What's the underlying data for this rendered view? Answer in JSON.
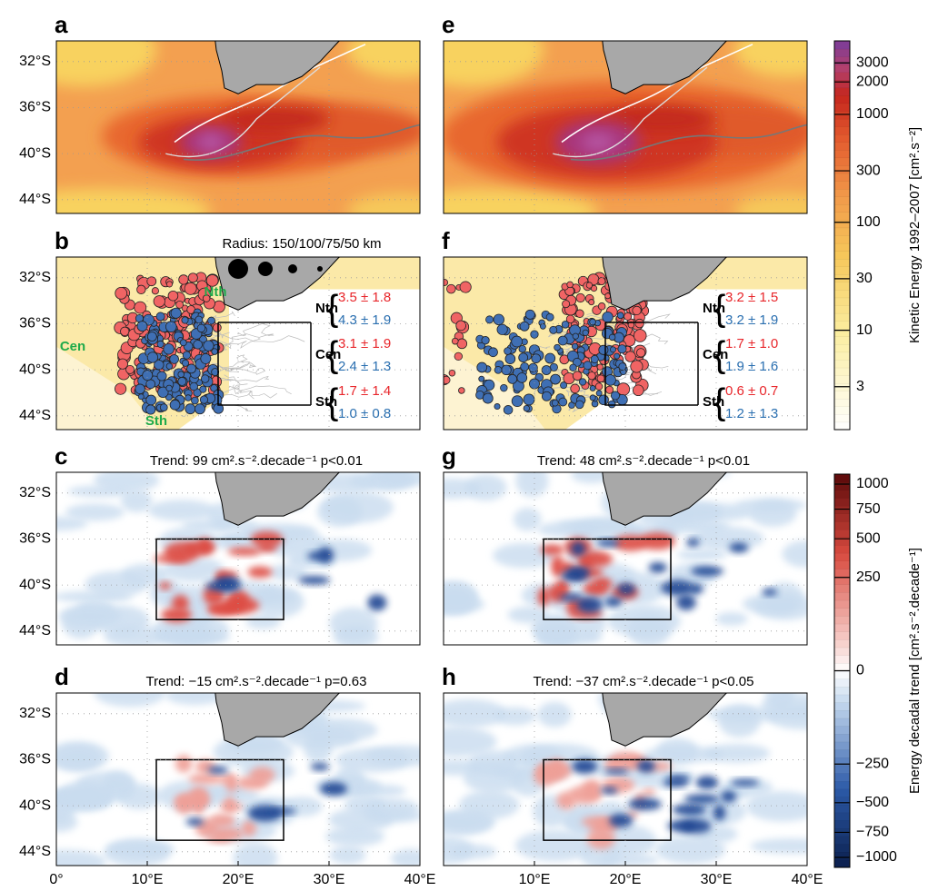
{
  "panels": [
    {
      "label": "a"
    },
    {
      "label": "e"
    },
    {
      "label": "b",
      "annotation": "Radius:  150/100/75/50 km",
      "regions": [
        "Nth",
        "Cen",
        "Sth"
      ],
      "stats": [
        {
          "region": "Nth",
          "red": "3.5 ± 1.8",
          "blue": "4.3 ± 1.9"
        },
        {
          "region": "Cen",
          "red": "3.1 ± 1.9",
          "blue": "2.4 ± 1.3"
        },
        {
          "region": "Sth",
          "red": "1.7 ± 1.4",
          "blue": "1.0 ± 0.8"
        }
      ]
    },
    {
      "label": "f",
      "stats": [
        {
          "region": "Nth",
          "red": "3.2 ± 1.5",
          "blue": "3.2 ± 1.9"
        },
        {
          "region": "Cen",
          "red": "1.7 ± 1.0",
          "blue": "1.9 ± 1.6"
        },
        {
          "region": "Sth",
          "red": "0.6 ± 0.7",
          "blue": "1.2 ± 1.3"
        }
      ]
    },
    {
      "label": "c",
      "title": "Trend: 99 cm².s⁻².decade⁻¹ p<0.01"
    },
    {
      "label": "g",
      "title": "Trend: 48 cm².s⁻².decade⁻¹ p<0.01"
    },
    {
      "label": "d",
      "title": "Trend: −15 cm².s⁻².decade⁻¹ p=0.63"
    },
    {
      "label": "h",
      "title": "Trend: −37 cm².s⁻².decade⁻¹ p<0.05"
    }
  ],
  "map_axes": {
    "xlim": [
      0,
      40
    ],
    "ylim": [
      -45.2,
      -30.2
    ],
    "xticks": [
      {
        "value": 0,
        "label": "0°"
      },
      {
        "value": 10,
        "label": "10°E"
      },
      {
        "value": 20,
        "label": "20°E"
      },
      {
        "value": 30,
        "label": "30°E"
      },
      {
        "value": 40,
        "label": "40°E"
      }
    ],
    "yticks": [
      {
        "value": -32,
        "label": "32°S"
      },
      {
        "value": -36,
        "label": "36°S"
      },
      {
        "value": -40,
        "label": "40°S"
      },
      {
        "value": -44,
        "label": "44°S"
      }
    ]
  },
  "colorbars": [
    {
      "label": "Kinetic Energy 1992–2007 [cm².s⁻²]",
      "scale": "log",
      "lim": [
        1.2,
        4800
      ],
      "ticks": [
        3,
        10,
        30,
        100,
        300,
        1000,
        2000,
        3000
      ]
    },
    {
      "label": "Energy decadal trend [cm².s⁻².decade⁻¹]",
      "scale": "sqrt",
      "lim": [
        -1110,
        1110
      ],
      "ticks": [
        1000,
        750,
        500,
        250,
        0,
        {
          "value": -250,
          "label": "−250"
        },
        {
          "value": -500,
          "label": "−500"
        },
        {
          "value": -750,
          "label": "−750"
        },
        {
          "value": -1000,
          "label": "−1000"
        }
      ]
    }
  ]
}
